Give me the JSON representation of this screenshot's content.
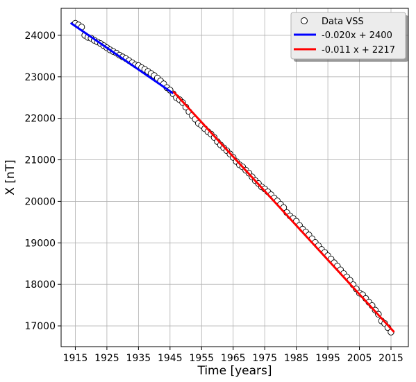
{
  "chart_data": {
    "type": "scatter",
    "title": "",
    "xlabel": "Time [years]",
    "ylabel": "X [nT]",
    "xlim": [
      1910.5,
      2020.5
    ],
    "ylim": [
      16500,
      24650
    ],
    "xticks": [
      1915,
      1925,
      1935,
      1945,
      1955,
      1965,
      1975,
      1985,
      1995,
      2005,
      2015
    ],
    "yticks": [
      17000,
      18000,
      19000,
      20000,
      21000,
      22000,
      23000,
      24000
    ],
    "grid": true,
    "legend_position": "top-right",
    "legend": [
      {
        "label": "Data VSS",
        "kind": "marker",
        "color": "#000000"
      },
      {
        "label": "-0.020x + 2400",
        "kind": "line",
        "color": "#0000ff"
      },
      {
        "label": "-0.011 x + 2217",
        "kind": "line",
        "color": "#ff0000"
      }
    ],
    "series": [
      {
        "name": "Data VSS",
        "type": "scatter",
        "marker": "open-circle",
        "x": [
          1915,
          1916,
          1917,
          1918,
          1919,
          1920,
          1921,
          1922,
          1923,
          1924,
          1925,
          1926,
          1927,
          1928,
          1929,
          1930,
          1931,
          1932,
          1933,
          1934,
          1935,
          1936,
          1937,
          1938,
          1939,
          1940,
          1941,
          1942,
          1943,
          1944,
          1945,
          1946,
          1947,
          1948,
          1949,
          1950,
          1951,
          1952,
          1953,
          1954,
          1955,
          1956,
          1957,
          1958,
          1959,
          1960,
          1961,
          1962,
          1963,
          1964,
          1965,
          1966,
          1967,
          1968,
          1969,
          1970,
          1971,
          1972,
          1973,
          1974,
          1975,
          1976,
          1977,
          1978,
          1979,
          1980,
          1981,
          1982,
          1983,
          1984,
          1985,
          1986,
          1987,
          1988,
          1989,
          1990,
          1991,
          1992,
          1993,
          1994,
          1995,
          1996,
          1997,
          1998,
          1999,
          2000,
          2001,
          2002,
          2003,
          2004,
          2005,
          2006,
          2007,
          2008,
          2009,
          2010,
          2011,
          2012,
          2013,
          2014,
          2015
        ],
        "y": [
          24290,
          24250,
          24200,
          24000,
          23950,
          23930,
          23880,
          23840,
          23800,
          23750,
          23700,
          23650,
          23610,
          23570,
          23520,
          23480,
          23440,
          23390,
          23340,
          23290,
          23270,
          23220,
          23180,
          23130,
          23080,
          23030,
          22970,
          22900,
          22830,
          22740,
          22680,
          22590,
          22500,
          22450,
          22380,
          22270,
          22160,
          22070,
          21980,
          21880,
          21830,
          21750,
          21680,
          21620,
          21540,
          21440,
          21360,
          21290,
          21220,
          21140,
          21060,
          20960,
          20880,
          20830,
          20750,
          20680,
          20590,
          20500,
          20430,
          20350,
          20300,
          20230,
          20160,
          20080,
          20010,
          19930,
          19850,
          19730,
          19650,
          19590,
          19520,
          19420,
          19330,
          19260,
          19190,
          19100,
          19010,
          18930,
          18840,
          18770,
          18690,
          18610,
          18520,
          18440,
          18350,
          18260,
          18180,
          18100,
          17990,
          17890,
          17790,
          17750,
          17660,
          17570,
          17490,
          17380,
          17280,
          17120,
          17060,
          16960,
          16850
        ]
      },
      {
        "name": "-0.020x + 2400",
        "type": "line",
        "color": "#0000ff",
        "x": [
          1913.5,
          1946
        ],
        "y": [
          24300,
          22600
        ]
      },
      {
        "name": "-0.011 x + 2217",
        "type": "line",
        "color": "#ff0000",
        "x": [
          1946,
          2016
        ],
        "y": [
          22650,
          16850
        ]
      }
    ]
  }
}
